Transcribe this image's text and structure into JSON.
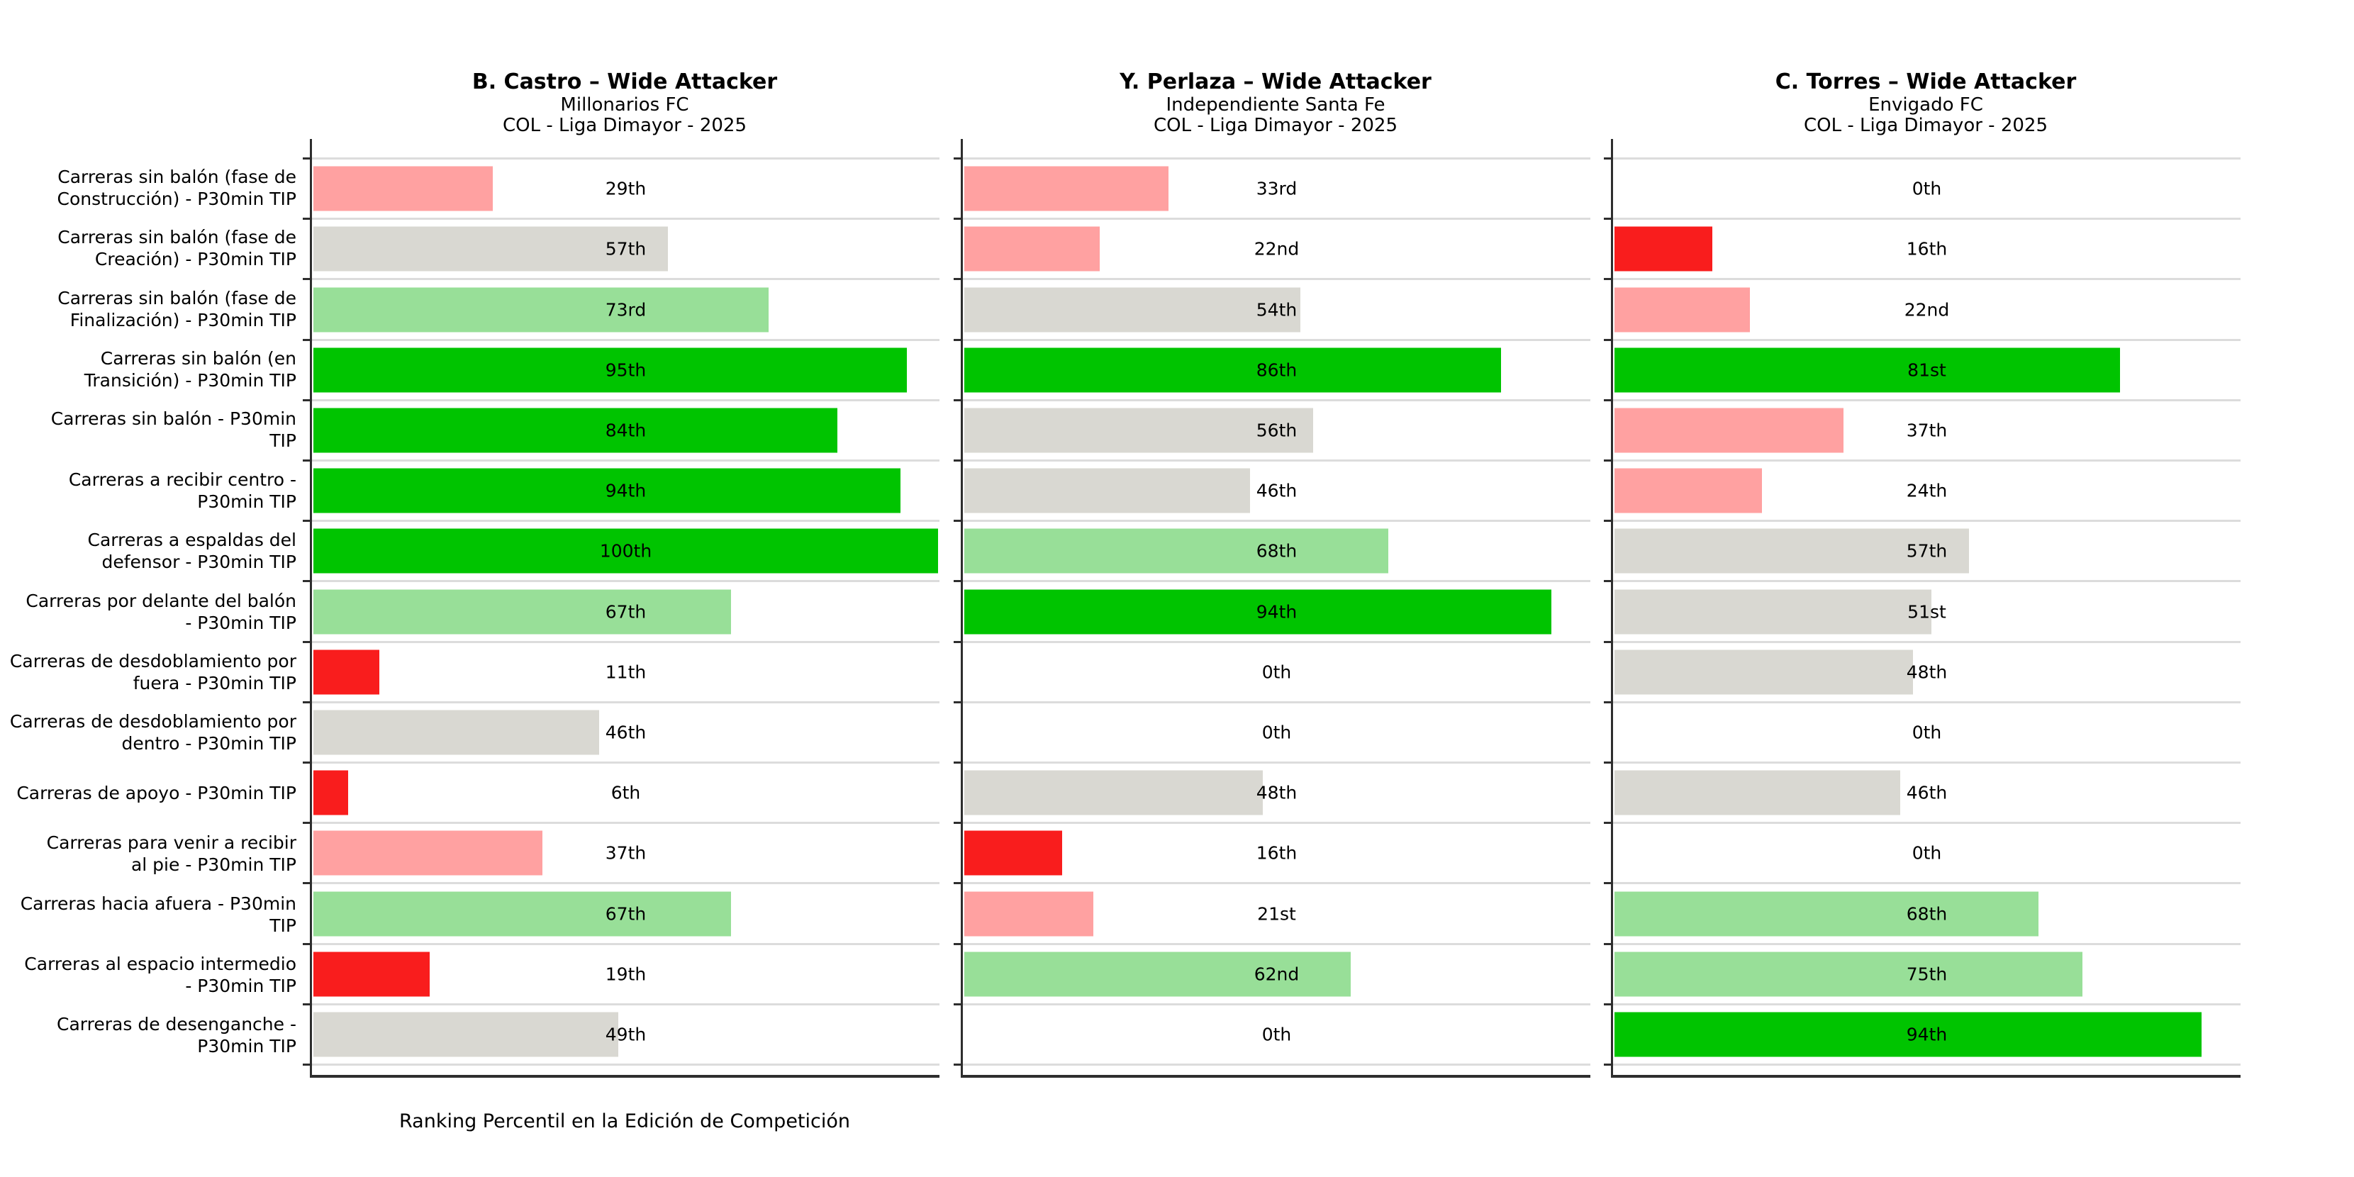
{
  "chart_data": {
    "type": "bar",
    "orientation": "horizontal",
    "xlim": [
      0,
      100
    ],
    "grid": "row-separators",
    "legend": "none",
    "xlabel": "Ranking Percentil en la Edición de Competición",
    "categories": [
      [
        "Carreras sin balón (fase de",
        "Construcción) - P30min TIP"
      ],
      [
        "Carreras sin balón (fase de",
        "Creación) - P30min TIP"
      ],
      [
        "Carreras sin balón (fase de",
        "Finalización) - P30min TIP"
      ],
      [
        "Carreras sin balón (en",
        "Transición) - P30min TIP"
      ],
      [
        "Carreras sin balón - P30min",
        "TIP"
      ],
      [
        "Carreras a recibir centro -",
        "P30min TIP"
      ],
      [
        "Carreras a espaldas del",
        "defensor - P30min TIP"
      ],
      [
        "Carreras por delante del balón",
        "- P30min TIP"
      ],
      [
        "Carreras de desdoblamiento por",
        "fuera - P30min TIP"
      ],
      [
        "Carreras de desdoblamiento por",
        "dentro - P30min TIP"
      ],
      [
        "Carreras de apoyo - P30min TIP"
      ],
      [
        "Carreras para venir a recibir",
        "al pie - P30min TIP"
      ],
      [
        "Carreras hacia afuera - P30min",
        "TIP"
      ],
      [
        "Carreras al espacio intermedio",
        "- P30min TIP"
      ],
      [
        "Carreras de desenganche -",
        "P30min TIP"
      ]
    ],
    "panels": [
      {
        "player": "B. Castro – Wide Attacker",
        "team": "Millonarios FC",
        "competition": "COL - Liga Dimayor - 2025",
        "values": [
          29,
          57,
          73,
          95,
          84,
          94,
          100,
          67,
          11,
          46,
          6,
          37,
          67,
          19,
          49
        ],
        "value_labels": [
          "29th",
          "57th",
          "73rd",
          "95th",
          "84th",
          "94th",
          "100th",
          "67th",
          "11th",
          "46th",
          "6th",
          "37th",
          "67th",
          "19th",
          "49th"
        ]
      },
      {
        "player": "Y. Perlaza – Wide Attacker",
        "team": "Independiente Santa Fe",
        "competition": "COL - Liga Dimayor - 2025",
        "values": [
          33,
          22,
          54,
          86,
          56,
          46,
          68,
          94,
          0,
          0,
          48,
          16,
          21,
          62,
          0
        ],
        "value_labels": [
          "33rd",
          "22nd",
          "54th",
          "86th",
          "56th",
          "46th",
          "68th",
          "94th",
          "0th",
          "0th",
          "48th",
          "16th",
          "21st",
          "62nd",
          "0th"
        ]
      },
      {
        "player": "C. Torres – Wide Attacker",
        "team": "Envigado FC",
        "competition": "COL - Liga Dimayor - 2025",
        "values": [
          0,
          16,
          22,
          81,
          37,
          24,
          57,
          51,
          48,
          0,
          46,
          0,
          68,
          75,
          94
        ],
        "value_labels": [
          "0th",
          "16th",
          "22nd",
          "81st",
          "37th",
          "24th",
          "57th",
          "51st",
          "48th",
          "0th",
          "46th",
          "0th",
          "68th",
          "75th",
          "94th"
        ]
      }
    ],
    "palette": {
      "very_low": "#F91D1D",
      "low": "#FFA1A1",
      "mid": "#D9D8D2",
      "high": "#98DF98",
      "very_high": "#00C400"
    },
    "thresholds": {
      "very_high": 80,
      "high": 60,
      "mid": 40,
      "low": 20
    }
  }
}
